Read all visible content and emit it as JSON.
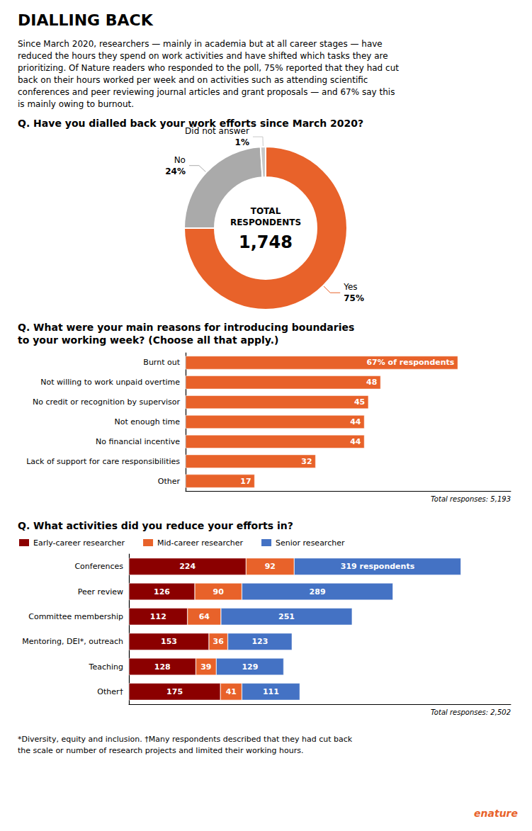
{
  "title": "DIALLING BACK",
  "subtitle": "Since March 2020, researchers — mainly in academia but at all career stages — have\nreduced the hours they spend on work activities and have shifted which tasks they are\nprioritizing. Of ​Nature​ readers who responded to the poll, 75% reported that they had cut\nback on their hours worked per week and on activities such as attending scientific\nconferences and peer reviewing journal articles and grant proposals — and 67% say this\nis mainly owing to burnout.",
  "annotations": [
    "*Diversity, equity and inclusion. †Many respondents described that they had cut back",
    "the scale or number of research projects and limited their working hours."
  ],
  "logo": {
    "text": "enature",
    "color": "#E8622A"
  },
  "chart_data": [
    {
      "type": "pie",
      "title": "Q. Have you dialled back your work efforts since March 2020?",
      "categories": [
        "Yes",
        "No",
        "Did not answer"
      ],
      "values": [
        75,
        24,
        1
      ],
      "value_labels": [
        "75%",
        "24%",
        "1%"
      ],
      "colors": [
        "#E8622A",
        "#AAAAAA",
        "#C8C8C8"
      ],
      "data_labels": true,
      "annotations": [
        "TOTAL",
        "RESPONDENTS",
        "1,748"
      ]
    },
    {
      "type": "bar",
      "orientation": "horizontal",
      "title": "Q. What were your main reasons for introducing boundaries\nto your working week? (Choose all that apply.)",
      "categories": [
        "Burnt out",
        "Not willing to work unpaid overtime",
        "No credit or recognition by supervisor",
        "Not enough time",
        "No financial incentive",
        "Lack of support for care responsibilities",
        "Other"
      ],
      "values": [
        67,
        48,
        45,
        44,
        44,
        32,
        17
      ],
      "value_labels": [
        "67% of respondents",
        "48",
        "45",
        "44",
        "44",
        "32",
        "17"
      ],
      "color": "#E8622A",
      "xlim": [
        0,
        80
      ],
      "data_labels": true,
      "tick_labels": "y",
      "grid": false,
      "annotations": [
        "Total responses: 5,193"
      ]
    },
    {
      "type": "bar",
      "orientation": "horizontal",
      "stacked": true,
      "title": "Q. What activities did you reduce your efforts in?",
      "categories": [
        "Conferences",
        "Peer review",
        "Committee membership",
        "Mentoring, DEI*, outreach",
        "Teaching",
        "Other†"
      ],
      "series": [
        {
          "name": "Early-career researcher",
          "color": "#8B0000",
          "values": [
            224,
            126,
            112,
            153,
            128,
            175
          ]
        },
        {
          "name": "Mid-career researcher",
          "color": "#E8622A",
          "values": [
            92,
            90,
            64,
            36,
            39,
            41
          ]
        },
        {
          "name": "Senior researcher",
          "color": "#4472C4",
          "values": [
            319,
            289,
            251,
            123,
            129,
            111
          ],
          "value_labels": [
            "319 respondents",
            "289",
            "251",
            "123",
            "129",
            "111"
          ]
        }
      ],
      "xlim": [
        0,
        730.25
      ],
      "data_labels": true,
      "tick_labels": "y",
      "grid": false,
      "legend": "upper left",
      "annotations": [
        "Total responses: 2,502"
      ]
    }
  ]
}
